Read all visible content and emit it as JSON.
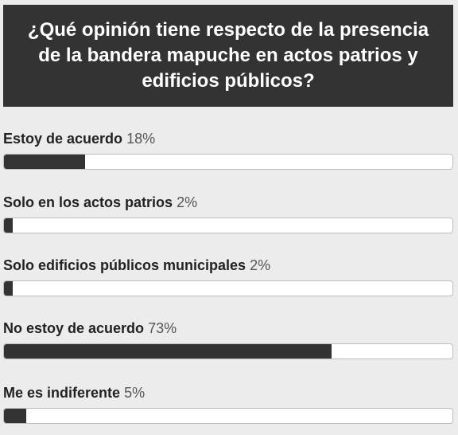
{
  "poll": {
    "question": "¿Qué opinión tiene respecto de la presencia de la bandera mapuche en actos patrios y edificios públicos?",
    "options": [
      {
        "label": "Estoy de acuerdo",
        "percent_text": "18%",
        "percent": 18
      },
      {
        "label": "Solo en los actos patrios",
        "percent_text": "2%",
        "percent": 2
      },
      {
        "label": "Solo edificios públicos municipales",
        "percent_text": "2%",
        "percent": 2
      },
      {
        "label": "No estoy de acuerdo",
        "percent_text": "73%",
        "percent": 73
      },
      {
        "label": "Me es indiferente",
        "percent_text": "5%",
        "percent": 5
      }
    ]
  },
  "colors": {
    "header_bg": "#333333",
    "bar_fill": "#333333",
    "bar_track": "#ffffff",
    "page_bg": "#ececec"
  }
}
